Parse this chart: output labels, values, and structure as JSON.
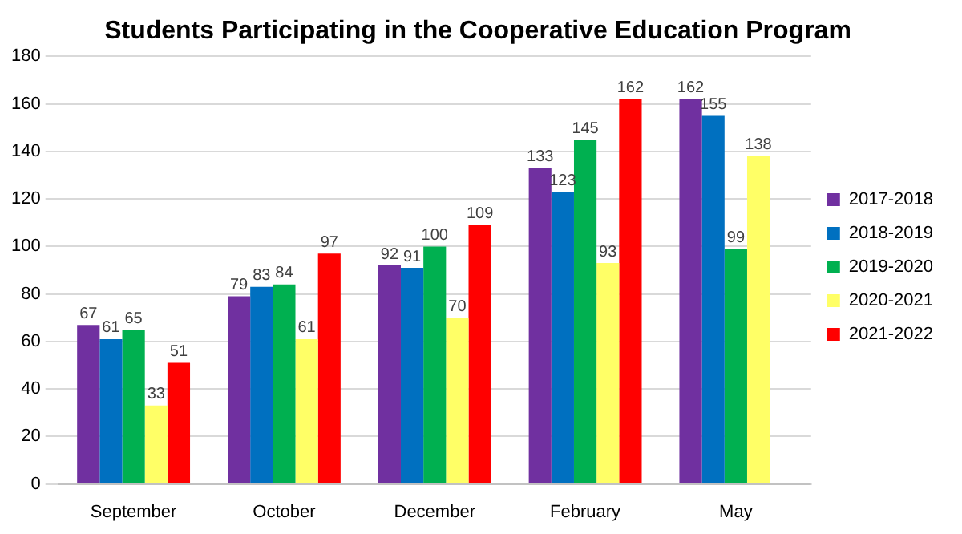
{
  "chart_data": {
    "type": "bar",
    "title": "Students Participating in the Cooperative Education Program",
    "categories": [
      "September",
      "October",
      "December",
      "February",
      "May"
    ],
    "series": [
      {
        "name": "2017-2018",
        "color": "#7030a0",
        "values": [
          67,
          79,
          92,
          133,
          162
        ]
      },
      {
        "name": "2018-2019",
        "color": "#0070c0",
        "values": [
          61,
          83,
          91,
          123,
          155
        ]
      },
      {
        "name": "2019-2020",
        "color": "#00b050",
        "values": [
          65,
          84,
          100,
          145,
          99
        ]
      },
      {
        "name": "2020-2021",
        "color": "#ffff66",
        "values": [
          33,
          61,
          70,
          93,
          138
        ]
      },
      {
        "name": "2021-2022",
        "color": "#ff0000",
        "values": [
          51,
          97,
          109,
          162,
          null
        ]
      }
    ],
    "ylim": [
      0,
      180
    ],
    "yticks": [
      0,
      20,
      40,
      60,
      80,
      100,
      120,
      140,
      160,
      180
    ],
    "grid": "y",
    "legend": "right",
    "data_labels": true
  }
}
